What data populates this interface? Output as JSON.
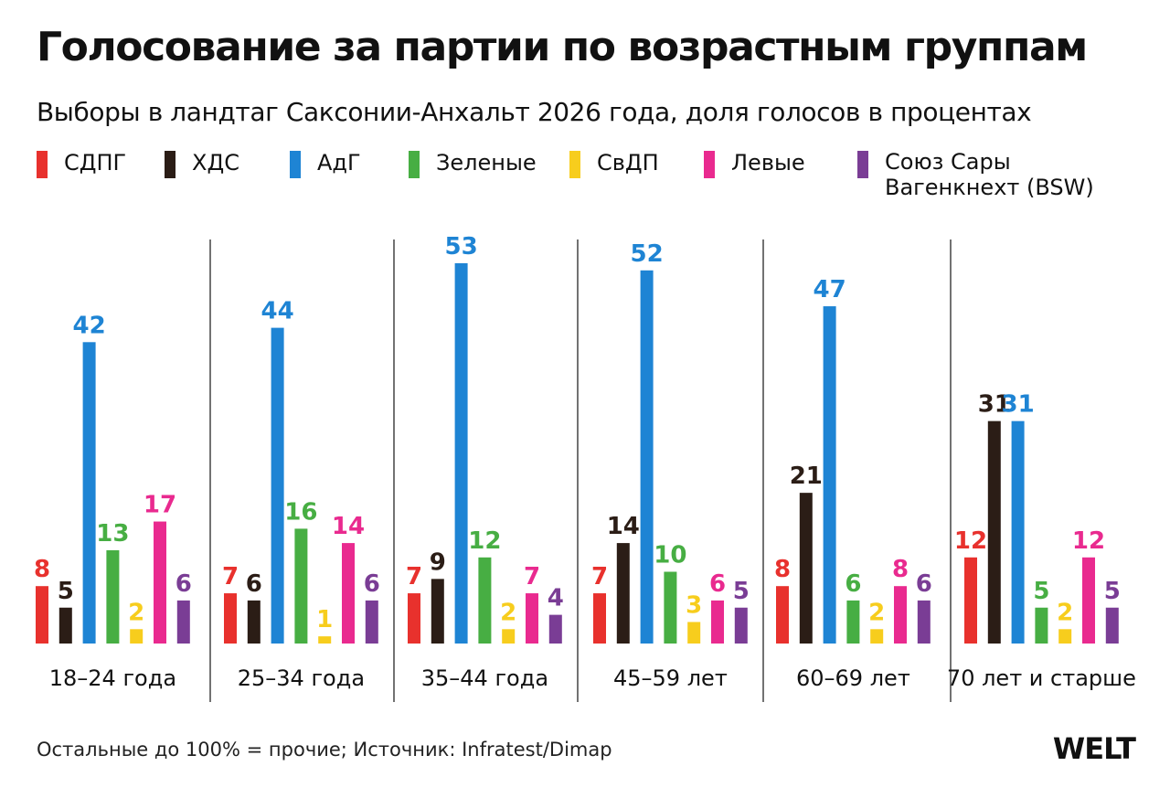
{
  "title": "Голосование за партии по возрастным группам",
  "subtitle": "Выборы в ландтаг Саксонии-Анхальт 2026 года, доля голосов в процентах",
  "legend": [
    {
      "label": "СДПГ",
      "color": "#e8312d"
    },
    {
      "label": "ХДС",
      "color": "#2b1d16"
    },
    {
      "label": "АдГ",
      "color": "#1e84d4"
    },
    {
      "label": "Зеленые",
      "color": "#47ae43"
    },
    {
      "label": "СвДП",
      "color": "#f7cd1d"
    },
    {
      "label": "Левые",
      "color": "#e92a8f"
    },
    {
      "label": "Союз Сары Вагенкнехт (BSW)",
      "color": "#7a3d95"
    }
  ],
  "footer": "Остальные до 100% = прочие; Источник: Infratest/Dimap",
  "logo": "WELT",
  "chart_data": {
    "type": "bar",
    "categories": [
      "18–24 года",
      "25–34 года",
      "35–44 года",
      "45–59 лет",
      "60–69 лет",
      "70 лет и старше"
    ],
    "series": [
      {
        "name": "СДПГ",
        "color": "#e8312d",
        "values": [
          8,
          7,
          7,
          7,
          8,
          12
        ]
      },
      {
        "name": "ХДС",
        "color": "#2b1d16",
        "values": [
          5,
          6,
          9,
          14,
          21,
          31
        ]
      },
      {
        "name": "АдГ",
        "color": "#1e84d4",
        "values": [
          42,
          44,
          53,
          52,
          47,
          31
        ]
      },
      {
        "name": "Зеленые",
        "color": "#47ae43",
        "values": [
          13,
          16,
          12,
          10,
          6,
          5
        ]
      },
      {
        "name": "СвДП",
        "color": "#f7cd1d",
        "values": [
          2,
          1,
          2,
          3,
          2,
          2
        ]
      },
      {
        "name": "Левые",
        "color": "#e92a8f",
        "values": [
          17,
          14,
          7,
          6,
          8,
          12
        ]
      },
      {
        "name": "Союз Сары Вагенкнехт (BSW)",
        "color": "#7a3d95",
        "values": [
          6,
          6,
          4,
          5,
          6,
          5
        ]
      }
    ],
    "ylim": [
      0,
      53
    ],
    "grid": false,
    "legend_position": "top"
  }
}
